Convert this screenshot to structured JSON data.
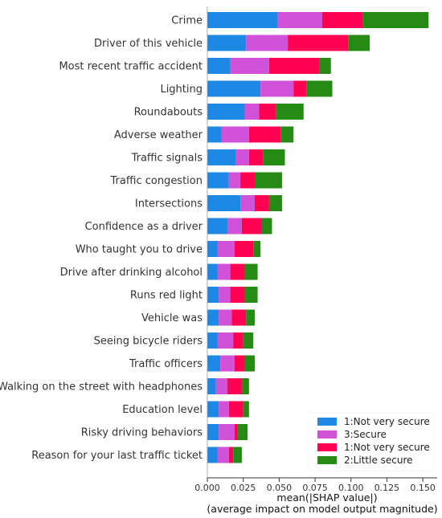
{
  "chart_data": {
    "type": "bar",
    "orientation": "horizontal",
    "stacked": true,
    "title": "",
    "xlabel_line1": "mean(|SHAP value|)",
    "xlabel_line2": "(average impact on model output magnitude)",
    "ylabel": "",
    "xlim": [
      0,
      0.16
    ],
    "xticks": [
      "0.000",
      "0.025",
      "0.050",
      "0.075",
      "0.100",
      "0.125",
      "0.150"
    ],
    "xtick_values": [
      0,
      0.025,
      0.05,
      0.075,
      0.1,
      0.125,
      0.15
    ],
    "grid": false,
    "legend_position": "bottom-right",
    "categories": [
      "Crime",
      "Driver of this vehicle",
      "Most recent traffic accident",
      "Lighting",
      "Roundabouts",
      "Adverse weather",
      "Traffic signals",
      "Traffic congestion",
      "Intersections",
      "Confidence as a driver",
      "Who taught you to drive",
      "Drive after drinking alcohol",
      "Runs red light",
      "Vehicle was",
      "Seeing bicycle riders",
      "Traffic officers",
      "Walking on the street with headphones",
      "Education level",
      "Risky driving behaviors",
      "Reason for your last traffic ticket"
    ],
    "series": [
      {
        "name": "1:Not very secure",
        "color": "#1E88E5",
        "values": [
          0.049,
          0.027,
          0.016,
          0.037,
          0.026,
          0.01,
          0.02,
          0.015,
          0.023,
          0.014,
          0.007,
          0.007,
          0.008,
          0.008,
          0.007,
          0.009,
          0.006,
          0.008,
          0.008,
          0.007
        ]
      },
      {
        "name": "3:Secure",
        "color": "#D152D9",
        "values": [
          0.031,
          0.029,
          0.027,
          0.023,
          0.01,
          0.019,
          0.009,
          0.008,
          0.01,
          0.01,
          0.012,
          0.009,
          0.008,
          0.009,
          0.011,
          0.01,
          0.008,
          0.007,
          0.011,
          0.008
        ]
      },
      {
        "name": "1:Not very secure",
        "color": "#FF0052",
        "values": [
          0.028,
          0.042,
          0.035,
          0.009,
          0.012,
          0.022,
          0.01,
          0.01,
          0.01,
          0.014,
          0.013,
          0.01,
          0.01,
          0.01,
          0.007,
          0.007,
          0.01,
          0.01,
          0.002,
          0.003
        ]
      },
      {
        "name": "2:Little secure",
        "color": "#258B14",
        "values": [
          0.046,
          0.015,
          0.008,
          0.018,
          0.019,
          0.009,
          0.015,
          0.019,
          0.009,
          0.007,
          0.005,
          0.009,
          0.009,
          0.006,
          0.007,
          0.007,
          0.005,
          0.004,
          0.007,
          0.006
        ]
      }
    ]
  }
}
